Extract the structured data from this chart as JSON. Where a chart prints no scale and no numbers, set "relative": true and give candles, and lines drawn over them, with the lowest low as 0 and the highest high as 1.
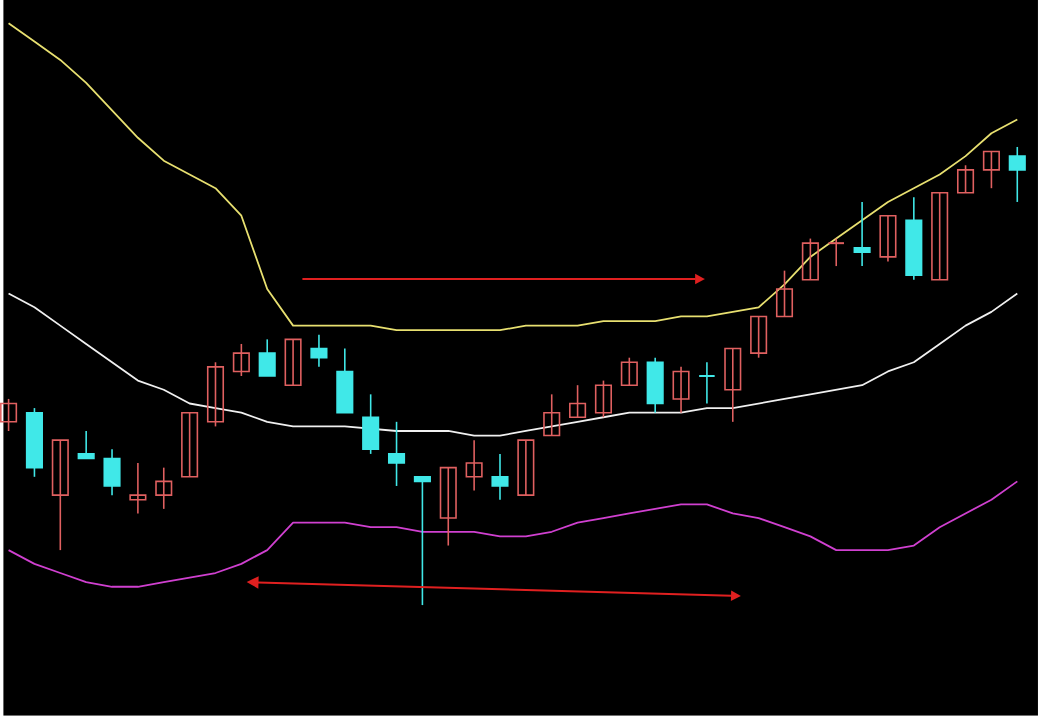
{
  "chart_data": {
    "type": "candlestick",
    "relative": true,
    "categories": [
      null,
      null,
      null,
      null,
      null,
      null,
      null,
      null,
      null,
      null,
      null,
      null,
      null,
      null,
      null,
      null,
      null,
      null,
      null,
      null,
      null,
      null,
      null,
      null,
      null,
      null,
      null,
      null,
      null,
      null,
      null,
      null,
      null,
      null,
      null,
      null,
      null,
      null,
      null,
      null
    ],
    "ohlc": [
      [
        0.4,
        0.45,
        0.38,
        0.44
      ],
      [
        0.42,
        0.43,
        0.28,
        0.3
      ],
      [
        0.24,
        0.36,
        0.12,
        0.36
      ],
      [
        0.33,
        0.38,
        0.32,
        0.32
      ],
      [
        0.32,
        0.34,
        0.24,
        0.26
      ],
      [
        0.23,
        0.31,
        0.2,
        0.24
      ],
      [
        0.24,
        0.3,
        0.21,
        0.27
      ],
      [
        0.28,
        0.42,
        0.28,
        0.42
      ],
      [
        0.4,
        0.53,
        0.39,
        0.52
      ],
      [
        0.51,
        0.57,
        0.5,
        0.55
      ],
      [
        0.55,
        0.58,
        0.5,
        0.5
      ],
      [
        0.48,
        0.58,
        0.48,
        0.58
      ],
      [
        0.56,
        0.59,
        0.52,
        0.54
      ],
      [
        0.51,
        0.56,
        0.42,
        0.42
      ],
      [
        0.41,
        0.46,
        0.33,
        0.34
      ],
      [
        0.33,
        0.4,
        0.26,
        0.31
      ],
      [
        0.28,
        0.28,
        0.0,
        0.27
      ],
      [
        0.19,
        0.3,
        0.13,
        0.3
      ],
      [
        0.28,
        0.36,
        0.25,
        0.31
      ],
      [
        0.28,
        0.33,
        0.23,
        0.26
      ],
      [
        0.24,
        0.36,
        0.24,
        0.36
      ],
      [
        0.37,
        0.46,
        0.37,
        0.42
      ],
      [
        0.41,
        0.48,
        0.41,
        0.44
      ],
      [
        0.42,
        0.49,
        0.41,
        0.48
      ],
      [
        0.48,
        0.54,
        0.48,
        0.53
      ],
      [
        0.53,
        0.54,
        0.42,
        0.44
      ],
      [
        0.45,
        0.52,
        0.42,
        0.51
      ],
      [
        0.5,
        0.53,
        0.44,
        0.5
      ],
      [
        0.47,
        0.56,
        0.4,
        0.56
      ],
      [
        0.55,
        0.63,
        0.54,
        0.63
      ],
      [
        0.63,
        0.73,
        0.63,
        0.69
      ],
      [
        0.71,
        0.8,
        0.71,
        0.79
      ],
      [
        0.79,
        0.8,
        0.74,
        0.79
      ],
      [
        0.78,
        0.88,
        0.74,
        0.77
      ],
      [
        0.76,
        0.85,
        0.75,
        0.85
      ],
      [
        0.84,
        0.89,
        0.71,
        0.72
      ],
      [
        0.71,
        0.9,
        0.71,
        0.9
      ],
      [
        0.9,
        0.96,
        0.9,
        0.95
      ],
      [
        0.95,
        0.99,
        0.91,
        0.99
      ],
      [
        0.98,
        1.0,
        0.88,
        0.95
      ]
    ],
    "colors": [
      "#e06060",
      "#40e8e8",
      "#e06060",
      "#40e8e8",
      "#40e8e8",
      "#e06060",
      "#e06060",
      "#e06060",
      "#e06060",
      "#e06060",
      "#40e8e8",
      "#e06060",
      "#40e8e8",
      "#40e8e8",
      "#40e8e8",
      "#40e8e8",
      "#40e8e8",
      "#e06060",
      "#e06060",
      "#40e8e8",
      "#e06060",
      "#e06060",
      "#e06060",
      "#e06060",
      "#e06060",
      "#40e8e8",
      "#e06060",
      "#40e8e8",
      "#e06060",
      "#e06060",
      "#e06060",
      "#e06060",
      "#e06060",
      "#40e8e8",
      "#e06060",
      "#40e8e8",
      "#e06060",
      "#e06060",
      "#e06060",
      "#40e8e8"
    ],
    "series": [
      {
        "type": "line",
        "color": "#e8e070",
        "values": [
          1.27,
          1.23,
          1.19,
          1.14,
          1.08,
          1.02,
          0.97,
          0.94,
          0.91,
          0.85,
          0.69,
          0.61,
          0.61,
          0.61,
          0.61,
          0.6,
          0.6,
          0.6,
          0.6,
          0.6,
          0.61,
          0.61,
          0.61,
          0.62,
          0.62,
          0.62,
          0.63,
          0.63,
          0.64,
          0.65,
          0.7,
          0.76,
          0.8,
          0.84,
          0.88,
          0.91,
          0.94,
          0.98,
          1.03,
          1.06
        ]
      },
      {
        "type": "line",
        "color": "#f0f0f0",
        "values": [
          0.68,
          0.65,
          0.61,
          0.57,
          0.53,
          0.49,
          0.47,
          0.44,
          0.43,
          0.42,
          0.4,
          0.39,
          0.39,
          0.39,
          null,
          0.38,
          0.38,
          0.38,
          0.37,
          0.37,
          0.38,
          0.39,
          0.4,
          0.41,
          0.42,
          0.42,
          0.42,
          0.43,
          0.43,
          0.44,
          0.45,
          0.46,
          0.47,
          0.48,
          0.51,
          0.53,
          0.57,
          0.61,
          0.64,
          0.68
        ]
      },
      {
        "type": "line",
        "color": "#d040d0",
        "values": [
          0.12,
          0.09,
          0.07,
          0.05,
          0.04,
          0.04,
          0.05,
          0.06,
          0.07,
          0.09,
          0.12,
          0.18,
          0.18,
          0.18,
          0.17,
          0.17,
          0.16,
          0.16,
          0.16,
          0.15,
          0.15,
          0.16,
          0.18,
          0.19,
          0.2,
          0.21,
          0.22,
          0.22,
          0.2,
          0.19,
          0.17,
          0.15,
          0.12,
          0.12,
          0.12,
          0.13,
          0.17,
          0.2,
          0.23,
          0.27
        ]
      }
    ]
  }
}
